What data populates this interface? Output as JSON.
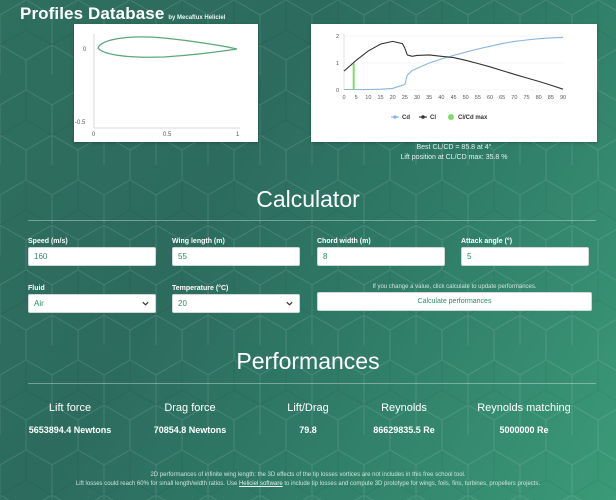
{
  "header": {
    "title": "Profiles Database",
    "subtitle": "by Mecaflux Heliciel"
  },
  "profile_chart": {
    "y_ticks": [
      "0",
      "-0.5"
    ],
    "x_ticks": [
      "0",
      "0.5",
      "1"
    ]
  },
  "chart_data": [
    {
      "type": "line",
      "series": [
        {
          "name": "Cd",
          "x": [
            0,
            5,
            10,
            15,
            20,
            22,
            25,
            26,
            28,
            30,
            35,
            40,
            45,
            50,
            55,
            60,
            65,
            70,
            75,
            80,
            85,
            90
          ],
          "y": [
            0.02,
            0.02,
            0.02,
            0.03,
            0.06,
            0.12,
            0.2,
            0.55,
            0.72,
            0.8,
            1.0,
            1.15,
            1.28,
            1.4,
            1.52,
            1.62,
            1.72,
            1.8,
            1.85,
            1.9,
            1.93,
            1.95
          ]
        },
        {
          "name": "Cl",
          "x": [
            0,
            5,
            10,
            15,
            20,
            24,
            25,
            26,
            28,
            30,
            35,
            40,
            45,
            50,
            55,
            60,
            65,
            70,
            75,
            80,
            85,
            90
          ],
          "y": [
            0.7,
            1.1,
            1.45,
            1.7,
            1.8,
            1.72,
            1.55,
            1.3,
            1.25,
            1.28,
            1.3,
            1.25,
            1.2,
            1.1,
            0.98,
            0.86,
            0.72,
            0.58,
            0.45,
            0.32,
            0.18,
            0.03
          ]
        },
        {
          "name": "Cl/Cd max",
          "x": [
            4,
            4
          ],
          "y": [
            0,
            0.98
          ]
        }
      ],
      "xlim": [
        0,
        90
      ],
      "ylim": [
        0,
        2
      ],
      "x_ticks": [
        "0",
        "5",
        "10",
        "15",
        "20",
        "25",
        "30",
        "35",
        "40",
        "45",
        "50",
        "55",
        "60",
        "65",
        "70",
        "75",
        "80",
        "85",
        "90"
      ],
      "y_ticks": [
        "0",
        "1",
        "2"
      ],
      "legend": [
        "Cd",
        "Cl",
        "Cl/Cd max"
      ],
      "legend_position": "bottom",
      "colors": {
        "Cd": "#8ab6e0",
        "Cl": "#333333",
        "Cl/Cd max": "#7ddc6b"
      }
    }
  ],
  "polar_caption": {
    "line1": "Best CL/CD = 85.8 at 4°",
    "line2": "Lift position at CL/CD max: 35.8 %"
  },
  "calculator": {
    "title": "Calculator",
    "fields": [
      {
        "label": "Speed (m/s)",
        "value": "160"
      },
      {
        "label": "Wing length (m)",
        "value": "55"
      },
      {
        "label": "Chord width (m)",
        "value": "8"
      },
      {
        "label": "Attack angle (°)",
        "value": "5"
      }
    ],
    "fluid": {
      "label": "Fluid",
      "value": "Air"
    },
    "temperature": {
      "label": "Temperature (°C)",
      "value": "20"
    },
    "hint": "If you change a value, click calculate to update performances.",
    "button": "Calculate performances"
  },
  "performances": {
    "title": "Performances",
    "columns": [
      {
        "head": "Lift force",
        "value": "5653894.4 Newtons"
      },
      {
        "head": "Drag force",
        "value": "70854.8 Newtons"
      },
      {
        "head": "Lift/Drag",
        "value": "79.8"
      },
      {
        "head": "Reynolds",
        "value": "86629835.5 Re"
      },
      {
        "head": "Reynolds matching",
        "value": "5000000 Re"
      }
    ]
  },
  "footnote": {
    "line1": "2D performances of infinite wing length: the 3D effects of the tip losses vortices are not includes in this free school tool.",
    "line2_a": "Lift losses could reach 60% for small length/width ratios. Use",
    "line2_link": "Heliciel software",
    "line2_b": "to include tip losses and compute 3D prototype for wings, foils, fins, turbines, propellers projects."
  },
  "colors": {
    "accent": "#2e8a6a",
    "background_start": "#2f6f5e",
    "background_end": "#3b9a78"
  }
}
